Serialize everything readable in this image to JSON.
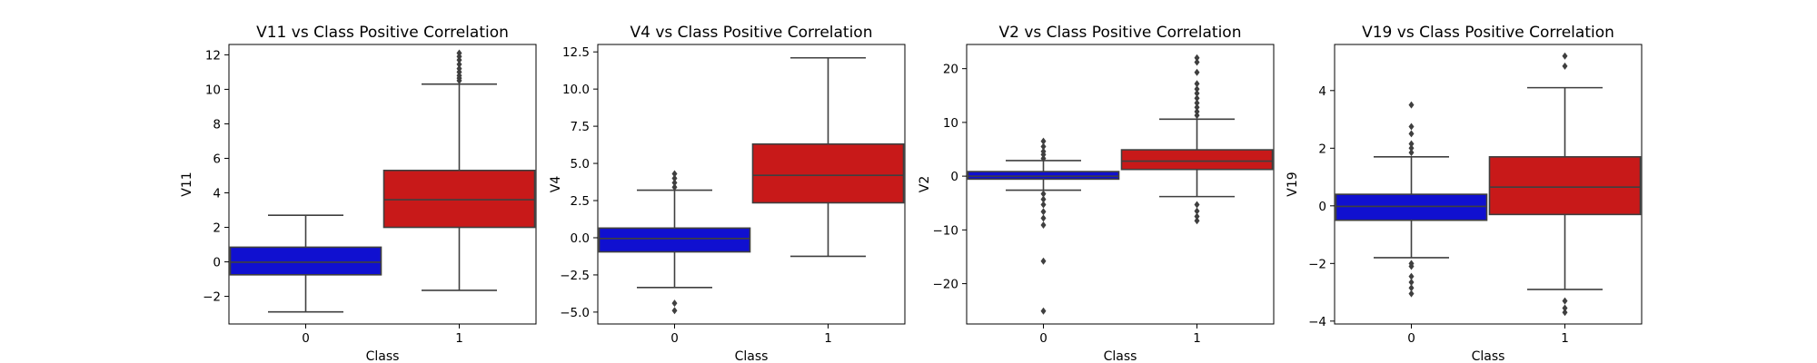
{
  "chart_data": [
    {
      "type": "box",
      "title": "V11 vs Class Positive Correlation",
      "xlabel": "Class",
      "ylabel": "V11",
      "categories": [
        "0",
        "1"
      ],
      "ylim": [
        -3.6,
        12.6
      ],
      "yticks": [
        -2,
        0,
        2,
        4,
        6,
        8,
        10,
        12
      ],
      "ytick_labels": [
        "−2",
        "0",
        "2",
        "4",
        "6",
        "8",
        "10",
        "12"
      ],
      "boxes": [
        {
          "class": "0",
          "color": "#1010d0",
          "whisker_low": -2.9,
          "q1": -0.75,
          "median": -0.02,
          "q3": 0.85,
          "whisker_high": 2.7,
          "outliers": []
        },
        {
          "class": "1",
          "color": "#c81919",
          "whisker_low": -1.65,
          "q1": 2.0,
          "median": 3.6,
          "q3": 5.3,
          "whisker_high": 10.3,
          "outliers": [
            10.5,
            10.65,
            10.8,
            11.0,
            11.2,
            11.45,
            11.7,
            11.9,
            12.1
          ]
        }
      ]
    },
    {
      "type": "box",
      "title": "V4 vs Class Positive Correlation",
      "xlabel": "Class",
      "ylabel": "V4",
      "categories": [
        "0",
        "1"
      ],
      "ylim": [
        -5.8,
        13.0
      ],
      "yticks": [
        -5.0,
        -2.5,
        0.0,
        2.5,
        5.0,
        7.5,
        10.0,
        12.5
      ],
      "ytick_labels": [
        "−5.0",
        "−2.5",
        "0.0",
        "2.5",
        "5.0",
        "7.5",
        "10.0",
        "12.5"
      ],
      "boxes": [
        {
          "class": "0",
          "color": "#1010d0",
          "whisker_low": -3.35,
          "q1": -0.95,
          "median": -0.05,
          "q3": 0.65,
          "whisker_high": 3.2,
          "outliers": [
            -4.9,
            -4.4,
            3.4,
            3.7,
            4.0,
            4.3
          ]
        },
        {
          "class": "1",
          "color": "#c81919",
          "whisker_low": -1.25,
          "q1": 2.35,
          "median": 4.2,
          "q3": 6.3,
          "whisker_high": 12.1,
          "outliers": []
        }
      ]
    },
    {
      "type": "box",
      "title": "V2 vs Class Positive Correlation",
      "xlabel": "Class",
      "ylabel": "V2",
      "categories": [
        "0",
        "1"
      ],
      "ylim": [
        -27.5,
        24.5
      ],
      "yticks": [
        -20,
        -10,
        0,
        10,
        20
      ],
      "ytick_labels": [
        "−20",
        "−10",
        "0",
        "10",
        "20"
      ],
      "boxes": [
        {
          "class": "0",
          "color": "#1010d0",
          "whisker_low": -2.6,
          "q1": -0.55,
          "median": 0.0,
          "q3": 0.85,
          "whisker_high": 2.9,
          "outliers": [
            -25.1,
            -15.8,
            -9.1,
            -7.8,
            -6.6,
            -5.3,
            -4.3,
            -3.3,
            3.3,
            4.0,
            4.6,
            5.5,
            6.5
          ]
        },
        {
          "class": "1",
          "color": "#c81919",
          "whisker_low": -3.8,
          "q1": 1.25,
          "median": 2.8,
          "q3": 4.9,
          "whisker_high": 10.6,
          "outliers": [
            -8.3,
            -7.5,
            -6.5,
            -5.3,
            11.3,
            12.0,
            12.8,
            13.6,
            14.5,
            15.4,
            16.2,
            17.2,
            19.3,
            21.2,
            22.0
          ]
        }
      ]
    },
    {
      "type": "box",
      "title": "V19 vs Class Positive Correlation",
      "xlabel": "Class",
      "ylabel": "V19",
      "categories": [
        "0",
        "1"
      ],
      "ylim": [
        -4.1,
        5.6
      ],
      "yticks": [
        -4,
        -2,
        0,
        2,
        4
      ],
      "ytick_labels": [
        "−4",
        "−2",
        "0",
        "2",
        "4"
      ],
      "boxes": [
        {
          "class": "0",
          "color": "#1010d0",
          "whisker_low": -1.8,
          "q1": -0.5,
          "median": -0.02,
          "q3": 0.4,
          "whisker_high": 1.7,
          "outliers": [
            -3.05,
            -2.85,
            -2.65,
            -2.45,
            -2.1,
            -2.0,
            1.85,
            2.0,
            2.15,
            2.5,
            2.75,
            3.5
          ]
        },
        {
          "class": "1",
          "color": "#c81919",
          "whisker_low": -2.9,
          "q1": -0.3,
          "median": 0.65,
          "q3": 1.7,
          "whisker_high": 4.1,
          "outliers": [
            -3.7,
            -3.55,
            -3.3,
            4.85,
            5.2
          ]
        }
      ]
    }
  ]
}
